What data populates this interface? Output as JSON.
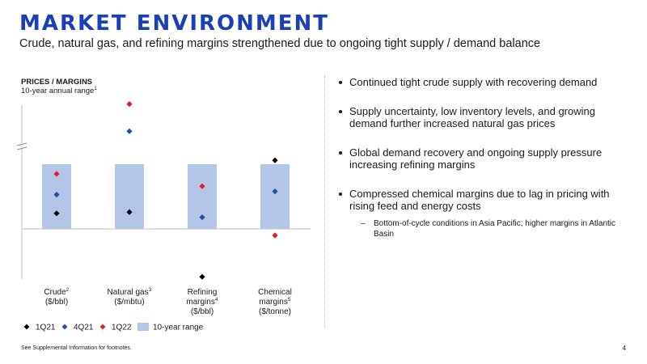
{
  "slide": {
    "title": "MARKET ENVIRONMENT",
    "subtitle": "Crude, natural gas, and refining margins strengthened due to ongoing tight supply / demand balance",
    "page_number": "4",
    "footnote": "See Supplemental Information for footnotes."
  },
  "chart_panel": {
    "label": "PRICES / MARGINS",
    "sublabel": "10-year annual range",
    "sublabel_sup": "1"
  },
  "bullets": [
    "Continued tight crude supply with recovering demand",
    "Supply uncertainty, low inventory levels, and growing demand further increased natural gas prices",
    "Global demand recovery and ongoing supply pressure increasing refining margins",
    "Compressed chemical margins due to lag in pricing with rising feed and energy costs"
  ],
  "sub_bullets": [
    "Bottom-of-cycle conditions in Asia Pacific; higher margins in Atlantic Basin"
  ],
  "chart_data": {
    "type": "scatter",
    "title": "PRICES / MARGINS",
    "subtitle": "10-year annual range",
    "axis_break": true,
    "y_axis": "normalized position within 10-year range (0 = bottom of range, 1 = top of range)",
    "ylim": [
      -0.75,
      1.0
    ],
    "categories": [
      {
        "name": "Crude",
        "sup": "2",
        "unit": "($/bbl)"
      },
      {
        "name": "Natural gas",
        "sup": "3",
        "unit": "($/mbtu)"
      },
      {
        "name": "Refining margins",
        "sup": "4",
        "unit": "($/bbl)"
      },
      {
        "name": "Chemical margins",
        "sup": "5",
        "unit": "($/tonne)"
      }
    ],
    "range_series": {
      "name": "10-year range",
      "low": [
        0,
        0,
        0,
        0
      ],
      "high": [
        1,
        1,
        1,
        1
      ],
      "color": "#b4c6e7"
    },
    "series": [
      {
        "name": "1Q21",
        "color": "#000000",
        "values": [
          0.24,
          0.26,
          -0.74,
          1.06
        ]
      },
      {
        "name": "4Q21",
        "color": "#1f50a8",
        "values": [
          0.53,
          1.51,
          0.18,
          0.58
        ]
      },
      {
        "name": "1Q22",
        "color": "#e31b23",
        "values": [
          0.85,
          1.93,
          0.66,
          -0.1
        ]
      }
    ],
    "legend_position": "bottom"
  }
}
